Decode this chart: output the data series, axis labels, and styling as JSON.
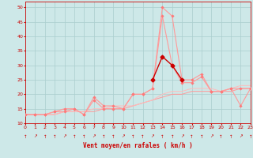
{
  "xlabel": "Vent moyen/en rafales ( km/h )",
  "bg_color": "#cde8e8",
  "grid_color": "#aacece",
  "xlim": [
    0,
    23
  ],
  "ylim": [
    10,
    52
  ],
  "yticks": [
    10,
    15,
    20,
    25,
    30,
    35,
    40,
    45,
    50
  ],
  "xticks": [
    0,
    1,
    2,
    3,
    4,
    5,
    6,
    7,
    8,
    9,
    10,
    11,
    12,
    13,
    14,
    15,
    16,
    17,
    18,
    19,
    20,
    21,
    22,
    23
  ],
  "line_gust_x": [
    0,
    1,
    2,
    3,
    4,
    5,
    6,
    7,
    8,
    9,
    10,
    11,
    12,
    13,
    14,
    15,
    16,
    17,
    18,
    19,
    20,
    21,
    22,
    23
  ],
  "line_gust_y": [
    13,
    13,
    13,
    14,
    15,
    15,
    13,
    19,
    16,
    16,
    15,
    20,
    20,
    22,
    50,
    47,
    25,
    25,
    27,
    21,
    21,
    22,
    22,
    22
  ],
  "line_avg_x": [
    0,
    1,
    2,
    3,
    4,
    5,
    6,
    7,
    8,
    9,
    10,
    11,
    12,
    13,
    14,
    15,
    16,
    17,
    18,
    19,
    20,
    21,
    22,
    23
  ],
  "line_avg_y": [
    13,
    13,
    13,
    14,
    14,
    15,
    13,
    18,
    15,
    15,
    15,
    20,
    20,
    22,
    47,
    30,
    24,
    24,
    26,
    21,
    21,
    22,
    16,
    22
  ],
  "line_trend1_x": [
    0,
    1,
    2,
    3,
    4,
    5,
    6,
    7,
    8,
    9,
    10,
    11,
    12,
    13,
    14,
    15,
    16,
    17,
    18,
    19,
    20,
    21,
    22,
    23
  ],
  "line_trend1_y": [
    13,
    13,
    13,
    13,
    14,
    14,
    14,
    14,
    15,
    15,
    15,
    16,
    17,
    18,
    19,
    20,
    20,
    21,
    21,
    21,
    21,
    21,
    22,
    22
  ],
  "line_trend2_x": [
    0,
    1,
    2,
    3,
    4,
    5,
    6,
    7,
    8,
    9,
    10,
    11,
    12,
    13,
    14,
    15,
    16,
    17,
    18,
    19,
    20,
    21,
    22,
    23
  ],
  "line_trend2_y": [
    13,
    13,
    13,
    13,
    14,
    14,
    14,
    15,
    15,
    16,
    16,
    16,
    17,
    18,
    20,
    21,
    21,
    22,
    22,
    22,
    21,
    22,
    23,
    23
  ],
  "red_x": [
    13,
    14,
    15,
    16
  ],
  "red_y": [
    25,
    33,
    30,
    25
  ],
  "light_pink": "#ff9999",
  "lighter_pink": "#ffbbbb",
  "dark_red": "#cc0000",
  "text_color": "#cc0000",
  "marker_col": "#ff7777"
}
